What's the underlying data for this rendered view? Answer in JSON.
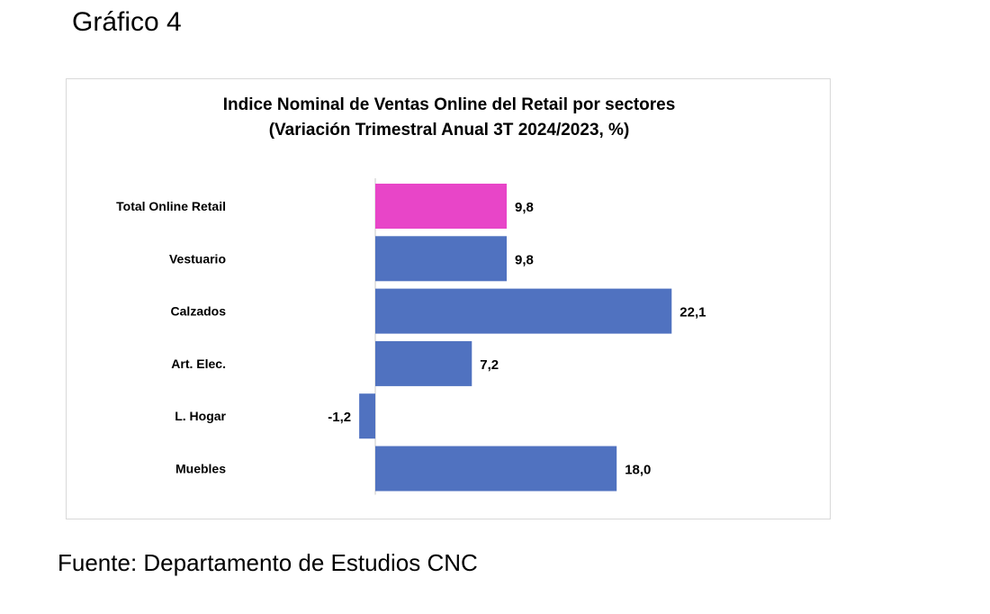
{
  "heading": "Gráfico 4",
  "source": "Fuente: Departamento de Estudios CNC",
  "chart_data": {
    "type": "bar",
    "orientation": "horizontal",
    "title_lines": [
      "Indice Nominal de Ventas Online del Retail  por sectores",
      "(Variación Trimestral Anual 3T 2024/2023, %)"
    ],
    "categories": [
      "Total Online Retail",
      "Vestuario",
      "Calzados",
      "Art. Elec.",
      "L. Hogar",
      "Muebles"
    ],
    "values": [
      9.8,
      9.8,
      22.1,
      7.2,
      -1.2,
      18.0
    ],
    "value_labels": [
      "9,8",
      "9,8",
      "22,1",
      "7,2",
      "-1,2",
      "18,0"
    ],
    "highlight_index": 0,
    "colors": {
      "bar": "#5072c0",
      "highlight": "#e845c8",
      "axis": "#c8c8c8"
    },
    "xlabel": "",
    "ylabel": "",
    "grid": false,
    "legend": "none"
  }
}
